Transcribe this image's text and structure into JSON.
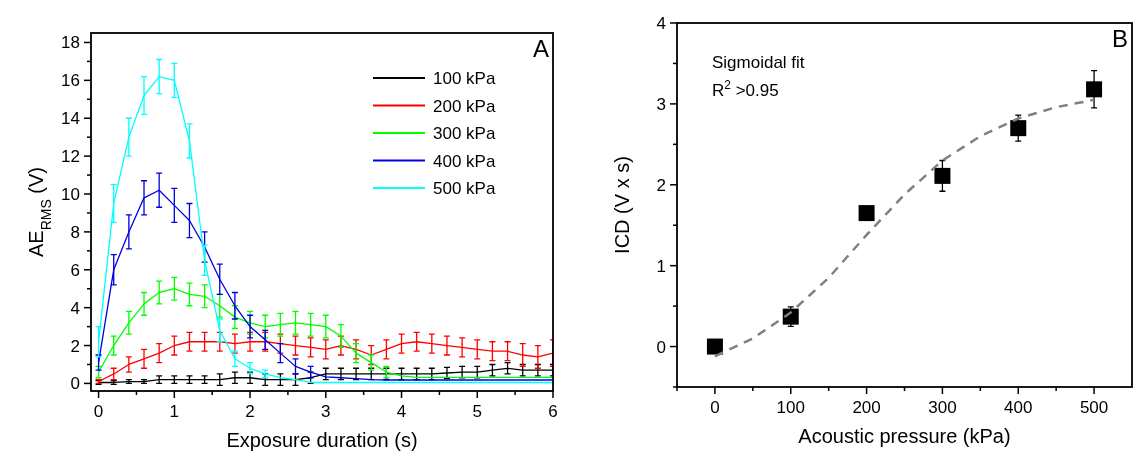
{
  "chart_data": [
    {
      "type": "line",
      "xlabel": "Exposure duration (s)",
      "ylabel": "AE$_{RMS}$ (V)",
      "xlim": [
        -0.1,
        6
      ],
      "ylim": [
        -0.4,
        18.5
      ],
      "xticks": [
        0,
        {
          "value": 0.5,
          "label": null
        },
        1,
        {
          "value": 1.5,
          "label": null
        },
        2,
        {
          "value": 2.5,
          "label": null
        },
        3,
        {
          "value": 3.5,
          "label": null
        },
        4,
        {
          "value": 4.5,
          "label": null
        },
        5,
        {
          "value": 5.5,
          "label": null
        },
        6
      ],
      "yticks": [
        0,
        {
          "value": 1,
          "label": null
        },
        2,
        {
          "value": 3,
          "label": null
        },
        4,
        {
          "value": 5,
          "label": null
        },
        6,
        {
          "value": 7,
          "label": null
        },
        8,
        {
          "value": 9,
          "label": null
        },
        10,
        {
          "value": 11,
          "label": null
        },
        12,
        {
          "value": 13,
          "label": null
        },
        14,
        {
          "value": 15,
          "label": null
        },
        16,
        {
          "value": 17,
          "label": null
        },
        18
      ],
      "x": [
        0,
        0.2,
        0.4,
        0.6,
        0.8,
        1.0,
        1.2,
        1.4,
        1.6,
        1.8,
        2.0,
        2.2,
        2.4,
        2.6,
        2.8,
        3.0,
        3.2,
        3.4,
        3.6,
        3.8,
        4.0,
        4.2,
        4.4,
        4.6,
        4.8,
        5.0,
        5.2,
        5.4,
        5.6,
        5.8,
        6.0
      ],
      "legend": "top right",
      "line_style": "solid",
      "marker": "none",
      "annotations": [
        "A"
      ],
      "series": [
        {
          "name": "100 kPa",
          "color": "#000000",
          "values": [
            0.05,
            0.05,
            0.1,
            0.1,
            0.2,
            0.2,
            0.2,
            0.2,
            0.2,
            0.3,
            0.3,
            0.2,
            0.2,
            0.2,
            0.3,
            0.5,
            0.5,
            0.5,
            0.5,
            0.5,
            0.5,
            0.5,
            0.5,
            0.55,
            0.6,
            0.6,
            0.7,
            0.8,
            0.7,
            0.7,
            0.7
          ],
          "errors": [
            0.1,
            0.1,
            0.1,
            0.1,
            0.2,
            0.2,
            0.2,
            0.2,
            0.3,
            0.3,
            0.3,
            0.3,
            0.3,
            0.3,
            0.3,
            0.3,
            0.3,
            0.3,
            0.3,
            0.3,
            0.3,
            0.3,
            0.3,
            0.3,
            0.3,
            0.3,
            0.3,
            0.3,
            0.3,
            0.3,
            0.3
          ]
        },
        {
          "name": "200 kPa",
          "color": "#ff0000",
          "values": [
            0.1,
            0.5,
            1.0,
            1.3,
            1.6,
            2.0,
            2.2,
            2.2,
            2.2,
            2.1,
            2.2,
            2.2,
            2.1,
            2.0,
            1.9,
            1.8,
            2.0,
            1.8,
            1.5,
            1.8,
            2.1,
            2.2,
            2.1,
            2.0,
            1.9,
            1.8,
            1.7,
            1.7,
            1.5,
            1.4,
            1.6
          ],
          "errors": [
            0.1,
            0.3,
            0.4,
            0.5,
            0.5,
            0.5,
            0.5,
            0.5,
            0.5,
            0.5,
            0.5,
            0.5,
            0.5,
            0.5,
            0.5,
            0.5,
            0.5,
            0.5,
            0.5,
            0.5,
            0.5,
            0.5,
            0.5,
            0.5,
            0.5,
            0.5,
            0.5,
            0.5,
            0.6,
            0.6,
            0.7
          ]
        },
        {
          "name": "300 kPa",
          "color": "#00ff00",
          "values": [
            0.6,
            2.0,
            3.2,
            4.2,
            4.8,
            5.0,
            4.7,
            4.6,
            4.1,
            3.5,
            3.2,
            3.0,
            3.1,
            3.2,
            3.1,
            3.0,
            2.5,
            1.6,
            1.1,
            0.6,
            0.4,
            0.32,
            0.32,
            0.32,
            0.32,
            0.32,
            0.32,
            0.32,
            0.32,
            0.32,
            0.32
          ],
          "errors": [
            0.3,
            0.5,
            0.6,
            0.6,
            0.6,
            0.6,
            0.6,
            0.6,
            0.6,
            0.6,
            0.6,
            0.6,
            0.6,
            0.6,
            0.6,
            0.6,
            0.6,
            0.5,
            0.4,
            0.3,
            null,
            null,
            null,
            null,
            null,
            null,
            null,
            null,
            null,
            null,
            null
          ]
        },
        {
          "name": "400 kPa",
          "color": "#0000dd",
          "values": [
            1.1,
            6.0,
            8.0,
            9.8,
            10.2,
            9.4,
            8.6,
            7.2,
            5.5,
            4.1,
            3.0,
            2.3,
            1.6,
            0.9,
            0.6,
            0.35,
            0.3,
            0.25,
            0.2,
            0.18,
            0.18,
            0.18,
            0.18,
            0.18,
            0.18,
            0.18,
            0.18,
            0.18,
            0.18,
            0.18,
            0.18
          ],
          "errors": [
            0.4,
            0.8,
            0.9,
            0.9,
            0.9,
            0.9,
            0.9,
            0.8,
            0.8,
            0.7,
            0.6,
            0.5,
            0.5,
            0.4,
            0.3,
            null,
            null,
            null,
            null,
            null,
            null,
            null,
            null,
            null,
            null,
            null,
            null,
            null,
            null,
            null,
            null
          ]
        },
        {
          "name": "500 kPa",
          "color": "#00ffff",
          "values": [
            2.2,
            9.5,
            13.0,
            15.2,
            16.2,
            16.0,
            12.8,
            6.5,
            2.8,
            1.3,
            0.8,
            0.5,
            0.3,
            0.2,
            0.05,
            0.05,
            0.05,
            0.05,
            0.05,
            0.05,
            0.05,
            0.05,
            0.05,
            0.05,
            0.05,
            0.05,
            0.05,
            0.05,
            0.05,
            0.05,
            0.05
          ],
          "errors": [
            0.8,
            1.0,
            1.0,
            1.0,
            0.9,
            0.9,
            0.9,
            0.8,
            0.6,
            0.4,
            0.3,
            0.2,
            null,
            null,
            null,
            null,
            null,
            null,
            null,
            null,
            null,
            null,
            null,
            null,
            null,
            null,
            null,
            null,
            null,
            null,
            null
          ]
        }
      ]
    },
    {
      "type": "scatter",
      "xlabel": "Acoustic pressure (kPa)",
      "ylabel": "ICD (V x s)",
      "xlim": [
        -50,
        550
      ],
      "ylim": [
        -0.5,
        4
      ],
      "xticks": [
        {
          "value": -50,
          "label": null
        },
        0,
        {
          "value": 50,
          "label": null
        },
        100,
        {
          "value": 150,
          "label": null
        },
        200,
        {
          "value": 250,
          "label": null
        },
        300,
        {
          "value": 350,
          "label": null
        },
        400,
        {
          "value": 450,
          "label": null
        },
        500
      ],
      "yticks": [
        {
          "value": -0.5,
          "label": null
        },
        0,
        {
          "value": 0.5,
          "label": null
        },
        1,
        {
          "value": 1.5,
          "label": null
        },
        2,
        {
          "value": 2.5,
          "label": null
        },
        3,
        {
          "value": 3.5,
          "label": null
        },
        4
      ],
      "x": [
        0,
        100,
        200,
        300,
        400,
        500
      ],
      "annotations": [
        "Sigmoidal fit",
        "R$^{2}$ >0.95",
        "B"
      ],
      "series": [
        {
          "color": "#000000",
          "marker": "square",
          "values": [
            0.0,
            0.37,
            1.65,
            2.11,
            2.7,
            3.18
          ],
          "errors": [
            null,
            0.12,
            null,
            0.19,
            0.16,
            0.23
          ]
        },
        {
          "type": "line",
          "color": "#808080",
          "line_style": "dashed",
          "marker": "none",
          "x": [
            0,
            50,
            100,
            150,
            200,
            250,
            300,
            350,
            400,
            450,
            500
          ],
          "values": [
            -0.12,
            0.1,
            0.42,
            0.85,
            1.38,
            1.88,
            2.3,
            2.6,
            2.82,
            2.96,
            3.05
          ]
        }
      ]
    }
  ]
}
